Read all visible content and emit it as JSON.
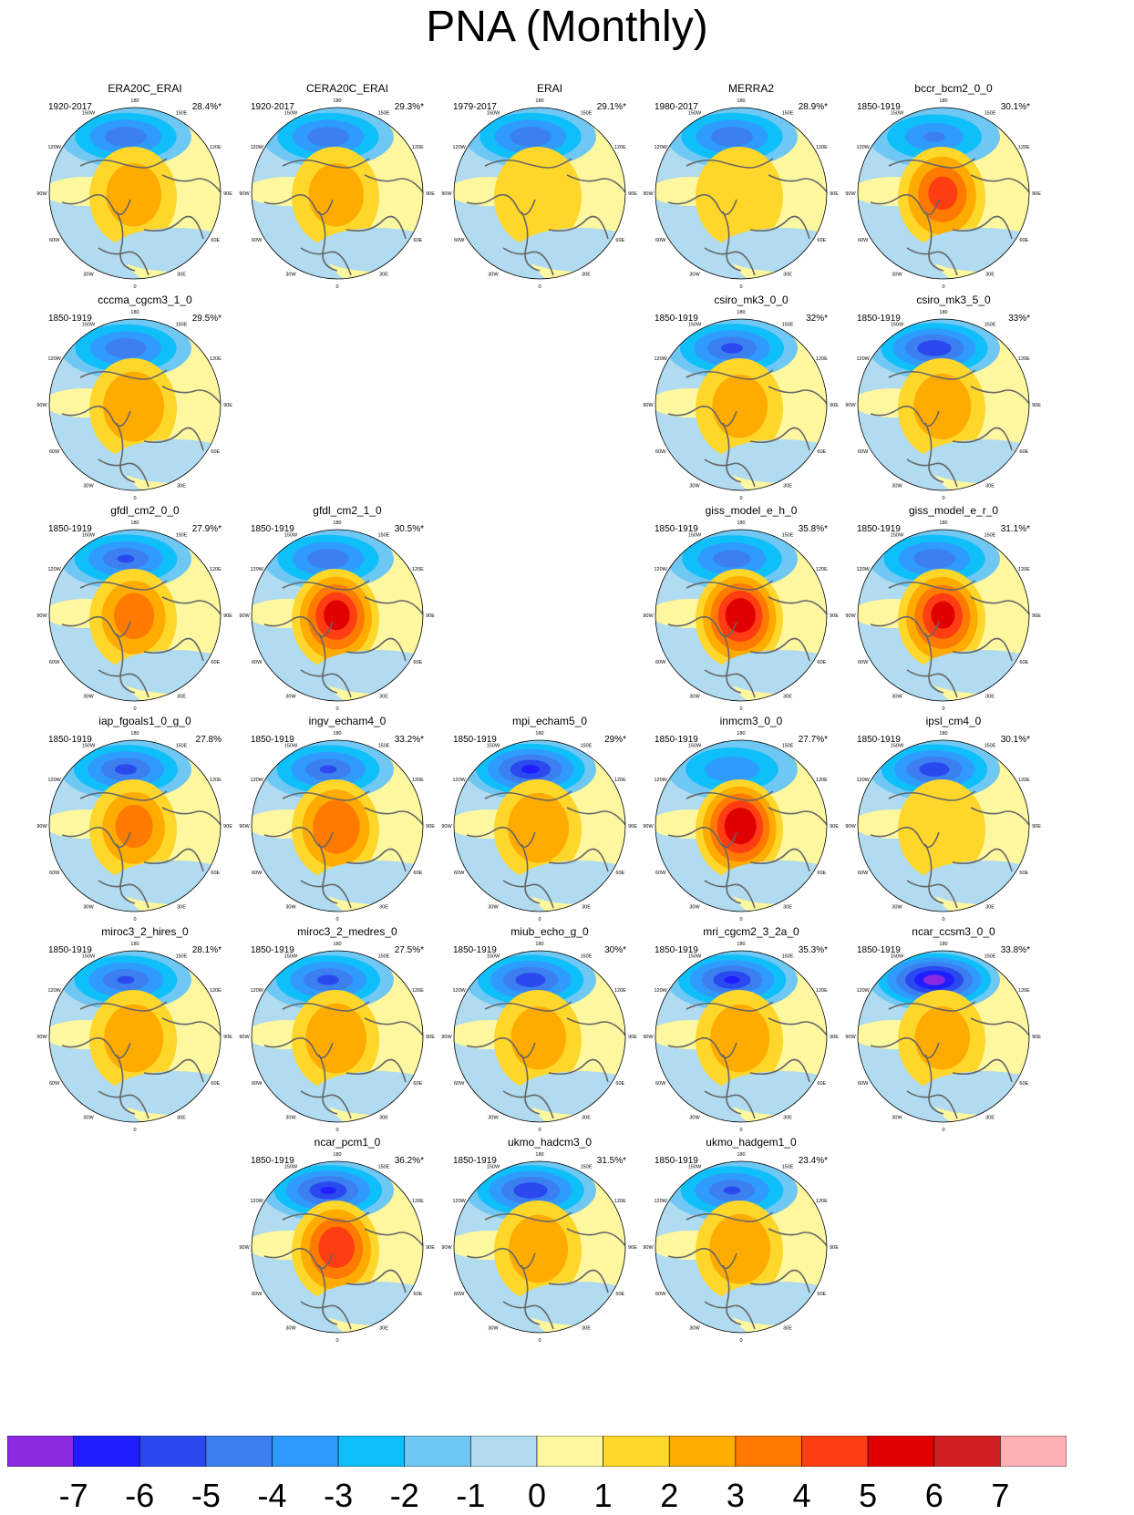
{
  "title": "PNA (Monthly)",
  "colors": {
    "map_land_outline": "#666666",
    "colorbar": [
      "#8a2be2",
      "#1e1eff",
      "#2a4af0",
      "#3c7ff0",
      "#2f9bff",
      "#0fbff9",
      "#6fc7f3",
      "#b0dbf0",
      "#fdf7a0",
      "#ffd62a",
      "#ffab00",
      "#ff7a00",
      "#ff3d12",
      "#e00000",
      "#cf1f22",
      "#ffb0b5"
    ]
  },
  "chart_data": {
    "type": "heatmap",
    "title": "PNA (Monthly)",
    "colorbar": {
      "labels": [
        "-7",
        "-6",
        "-5",
        "-4",
        "-3",
        "-2",
        "-1",
        "0",
        "1",
        "2",
        "3",
        "4",
        "5",
        "6",
        "7"
      ]
    },
    "tick_labels": [
      "180",
      "150W",
      "150E",
      "120W",
      "120E",
      "90W",
      "90E",
      "60W",
      "60E",
      "30W",
      "30E",
      "0"
    ],
    "panels": [
      {
        "name": "ERA20C_ERAI",
        "period": "1920-2017",
        "variance": "28.4%*",
        "neg": 3.8,
        "pos": 2.2,
        "row": 0,
        "col": 0
      },
      {
        "name": "CERA20C_ERAI",
        "period": "1920-2017",
        "variance": "29.3%*",
        "neg": 3.8,
        "pos": 2.2,
        "row": 0,
        "col": 1
      },
      {
        "name": "ERAI",
        "period": "1979-2017",
        "variance": "29.1%*",
        "neg": 3.8,
        "pos": 1.8,
        "row": 0,
        "col": 2
      },
      {
        "name": "MERRA2",
        "period": "1980-2017",
        "variance": "28.9%*",
        "neg": 3.8,
        "pos": 1.8,
        "row": 0,
        "col": 3
      },
      {
        "name": "bccr_bcm2_0_0",
        "period": "1850-1919",
        "variance": "30.1%*",
        "neg": 3.0,
        "pos": 4.0,
        "row": 0,
        "col": 4
      },
      {
        "name": "cccma_cgcm3_1_0",
        "period": "1850-1919",
        "variance": "29.5%*",
        "neg": 3.8,
        "pos": 2.8,
        "row": 1,
        "col": 0
      },
      {
        "name": "csiro_mk3_0_0",
        "period": "1850-1919",
        "variance": "32%*",
        "neg": 4.2,
        "pos": 2.2,
        "row": 1,
        "col": 3
      },
      {
        "name": "csiro_mk3_5_0",
        "period": "1850-1919",
        "variance": "33%*",
        "neg": 4.8,
        "pos": 2.4,
        "row": 1,
        "col": 4
      },
      {
        "name": "gfdl_cm2_0_0",
        "period": "1850-1919",
        "variance": "27.9%*",
        "neg": 4.0,
        "pos": 3.2,
        "row": 2,
        "col": 0
      },
      {
        "name": "gfdl_cm2_1_0",
        "period": "1850-1919",
        "variance": "30.5%*",
        "neg": 3.8,
        "pos": 5.2,
        "row": 2,
        "col": 1
      },
      {
        "name": "giss_model_e_h_0",
        "period": "1850-1919",
        "variance": "35.8%*",
        "neg": 3.6,
        "pos": 5.6,
        "row": 2,
        "col": 3
      },
      {
        "name": "giss_model_e_r_0",
        "period": "1850-1919",
        "variance": "31.1%*",
        "neg": 3.8,
        "pos": 5.0,
        "row": 2,
        "col": 4
      },
      {
        "name": "iap_fgoals1_0_g_0",
        "period": "1850-1919",
        "variance": "27.8%",
        "neg": 4.2,
        "pos": 3.0,
        "row": 3,
        "col": 0
      },
      {
        "name": "ingv_echam4_0",
        "period": "1850-1919",
        "variance": "33.2%*",
        "neg": 4.0,
        "pos": 3.8,
        "row": 3,
        "col": 1
      },
      {
        "name": "mpi_echam5_0",
        "period": "1850-1919",
        "variance": "29%*",
        "neg": 5.2,
        "pos": 2.8,
        "row": 3,
        "col": 2
      },
      {
        "name": "inmcm3_0_0",
        "period": "1850-1919",
        "variance": "27.7%*",
        "neg": 2.8,
        "pos": 5.8,
        "row": 3,
        "col": 3
      },
      {
        "name": "ipsl_cm4_0",
        "period": "1850-1919",
        "variance": "30.1%*",
        "neg": 4.6,
        "pos": 1.6,
        "row": 3,
        "col": 4
      },
      {
        "name": "miroc3_2_hires_0",
        "period": "1850-1919",
        "variance": "28.1%*",
        "neg": 4.0,
        "pos": 2.6,
        "row": 4,
        "col": 0
      },
      {
        "name": "miroc3_2_medres_0",
        "period": "1850-1919",
        "variance": "27.5%*",
        "neg": 4.2,
        "pos": 2.8,
        "row": 4,
        "col": 1
      },
      {
        "name": "miub_echo_g_0",
        "period": "1850-1919",
        "variance": "30%*",
        "neg": 4.6,
        "pos": 2.2,
        "row": 4,
        "col": 2
      },
      {
        "name": "mri_cgcm2_3_2a_0",
        "period": "1850-1919",
        "variance": "35.3%*",
        "neg": 5.0,
        "pos": 2.6,
        "row": 4,
        "col": 3
      },
      {
        "name": "ncar_ccsm3_0_0",
        "period": "1850-1919",
        "variance": "33.8%*",
        "neg": 6.6,
        "pos": 2.2,
        "row": 4,
        "col": 4
      },
      {
        "name": "ncar_pcm1_0",
        "period": "1850-1919",
        "variance": "36.2%*",
        "neg": 5.0,
        "pos": 4.6,
        "row": 5,
        "col": 1
      },
      {
        "name": "ukmo_hadcm3_0",
        "period": "1850-1919",
        "variance": "31.5%*",
        "neg": 4.8,
        "pos": 2.6,
        "row": 5,
        "col": 2
      },
      {
        "name": "ukmo_hadgem1_0",
        "period": "1850-1919",
        "variance": "23.4%*",
        "neg": 4.0,
        "pos": 2.8,
        "row": 5,
        "col": 3
      }
    ]
  }
}
